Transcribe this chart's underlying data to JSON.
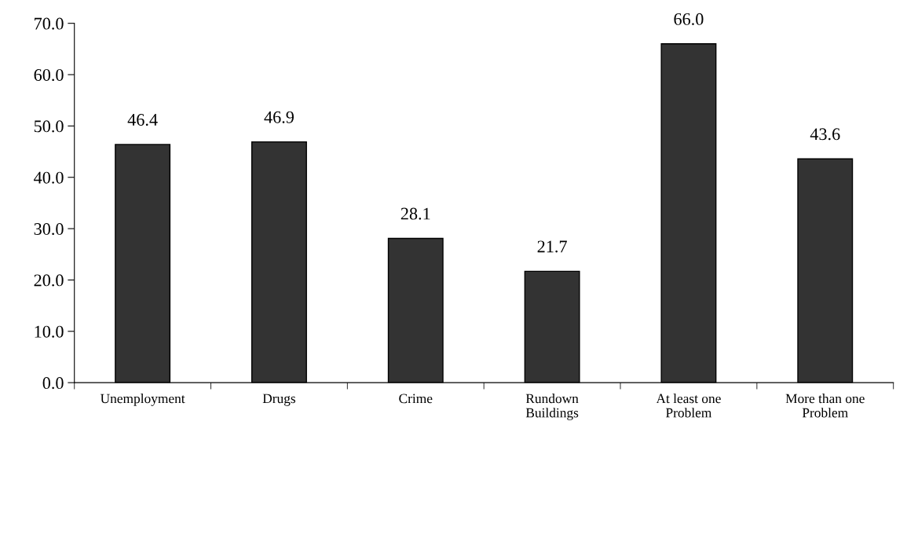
{
  "chart_data": {
    "type": "bar",
    "categories": [
      "Unemployment",
      "Drugs",
      "Crime",
      "Rundown\nBuildings",
      "At least one\nProblem",
      "More than one\nProblem"
    ],
    "values": [
      46.4,
      46.9,
      28.1,
      21.7,
      66.0,
      43.6
    ],
    "value_labels": [
      "46.4",
      "46.9",
      "28.1",
      "21.7",
      "66.0",
      "43.6"
    ],
    "color": "#333333",
    "ylim": [
      0,
      70
    ],
    "yticks": [
      {
        "value": 0,
        "label": "0.0"
      },
      {
        "value": 10,
        "label": "10.0"
      },
      {
        "value": 20,
        "label": "20.0"
      },
      {
        "value": 30,
        "label": "30.0"
      },
      {
        "value": 40,
        "label": "40.0"
      },
      {
        "value": 50,
        "label": "50.0"
      },
      {
        "value": 60,
        "label": "60.0"
      },
      {
        "value": 70,
        "label": "70.0"
      }
    ],
    "grid": false,
    "legend": false
  }
}
